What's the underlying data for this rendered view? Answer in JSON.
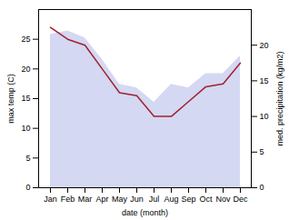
{
  "chart_data": {
    "type": "line",
    "categories": [
      "Jan",
      "Feb",
      "Mar",
      "Apr",
      "May",
      "Jun",
      "Jul",
      "Aug",
      "Sep",
      "Oct",
      "Nov",
      "Dec"
    ],
    "series": [
      {
        "type": "area",
        "axis": "y2",
        "color": "#b0b8e8",
        "values": [
          21.5,
          22.0,
          21.0,
          18.0,
          14.5,
          14.0,
          12.0,
          14.5,
          14.0,
          16.0,
          16.0,
          18.5
        ]
      },
      {
        "type": "line",
        "color": "#a02030",
        "values": [
          27.0,
          25.0,
          24.0,
          20.0,
          16.0,
          15.5,
          12.0,
          12.0,
          14.5,
          17.0,
          17.5,
          21.0
        ]
      }
    ],
    "xlabel": "date (month)",
    "ylabel": "max temp (C)",
    "y2label": "med. precipitation (kg/m2)",
    "ylim": [
      0,
      30
    ],
    "yticks": [
      0,
      5,
      10,
      15,
      20,
      25
    ],
    "y2lim": [
      0,
      25
    ],
    "y2ticks": [
      0,
      5,
      10,
      15,
      20
    ]
  }
}
